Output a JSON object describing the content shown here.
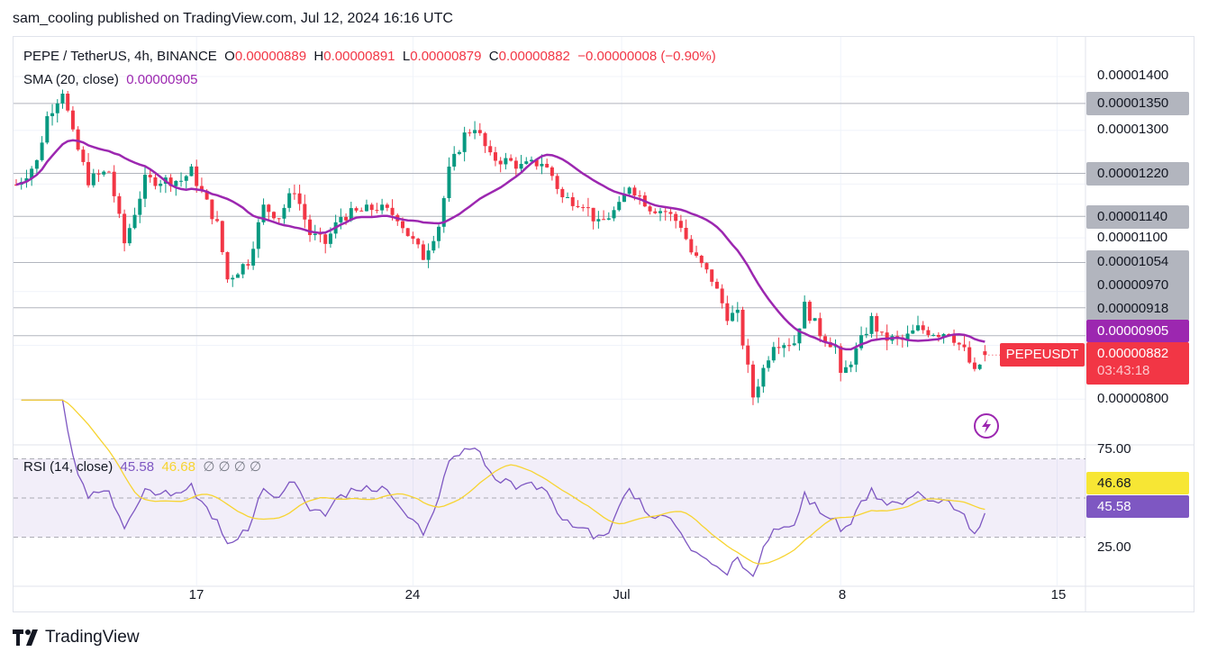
{
  "header": {
    "published": "sam_cooling published on TradingView.com, Jul 12, 2024 16:16 UTC"
  },
  "legend": {
    "symbol": "PEPE / TetherUS, 4h, BINANCE",
    "o_label": "O",
    "o": "0.00000889",
    "h_label": "H",
    "h": "0.00000891",
    "l_label": "L",
    "l": "0.00000879",
    "c_label": "C",
    "c": "0.00000882",
    "change": "−0.00000008 (−0.90%)",
    "sma_label": "SMA (20, close)",
    "sma_value": "0.00000905"
  },
  "price_axis": {
    "ticks": [
      "0.00001400",
      "0.00001300",
      "0.00001100",
      "0.00000800"
    ],
    "levels": [
      "0.00001350",
      "0.00001220",
      "0.00001140",
      "0.00001054",
      "0.00000970",
      "0.00000918"
    ],
    "sma_tag": "0.00000905",
    "last_price": "0.00000882",
    "countdown": "03:43:18",
    "symbol_tag": "PEPEUSDT"
  },
  "rsi": {
    "label": "RSI (14, close)",
    "value": "45.58",
    "ma_value": "46.68",
    "extra": "∅ ∅ ∅ ∅",
    "ticks": [
      "75.00",
      "25.00"
    ]
  },
  "time_axis": {
    "labels": [
      "17",
      "24",
      "Jul",
      "8",
      "15"
    ]
  },
  "footer": {
    "brand": "TradingView"
  },
  "colors": {
    "up": "#089981",
    "down": "#f23645",
    "sma": "#9c27b0",
    "rsi": "#7e57c2",
    "rsi_ma": "#f7d431",
    "level": "#b2b5be"
  },
  "chart_data": {
    "type": "candlestick",
    "title": "PEPE / TetherUS, 4h, BINANCE",
    "unit": "price × 1e-8",
    "ylim": [
      770,
      1425
    ],
    "price_levels": [
      1350,
      1220,
      1140,
      1054,
      970,
      918
    ],
    "time_ticks": [
      {
        "label": "17",
        "index": 35
      },
      {
        "label": "24",
        "index": 77
      },
      {
        "label": "Jul",
        "index": 117.5
      },
      {
        "label": "8",
        "index": 160
      },
      {
        "label": "15",
        "index": 202
      }
    ],
    "close_path": [
      [
        0,
        1199
      ],
      [
        4,
        1241
      ],
      [
        6,
        1325
      ],
      [
        9,
        1375
      ],
      [
        11,
        1291
      ],
      [
        14,
        1207
      ],
      [
        18,
        1224
      ],
      [
        21,
        1090
      ],
      [
        25,
        1207
      ],
      [
        28,
        1207
      ],
      [
        32,
        1207
      ],
      [
        34,
        1224
      ],
      [
        39,
        1124
      ],
      [
        41,
        1023
      ],
      [
        45,
        1057
      ],
      [
        48,
        1157
      ],
      [
        51,
        1140
      ],
      [
        54,
        1191
      ],
      [
        57,
        1107
      ],
      [
        60,
        1090
      ],
      [
        63,
        1140
      ],
      [
        67,
        1149
      ],
      [
        70,
        1157
      ],
      [
        74,
        1140
      ],
      [
        76,
        1107
      ],
      [
        79,
        1065
      ],
      [
        82,
        1124
      ],
      [
        84,
        1224
      ],
      [
        87,
        1291
      ],
      [
        89,
        1308
      ],
      [
        92,
        1249
      ],
      [
        96,
        1241
      ],
      [
        98,
        1232
      ],
      [
        102,
        1241
      ],
      [
        104,
        1216
      ],
      [
        106,
        1174
      ],
      [
        110,
        1166
      ],
      [
        113,
        1124
      ],
      [
        117,
        1157
      ],
      [
        119,
        1199
      ],
      [
        123,
        1157
      ],
      [
        126,
        1149
      ],
      [
        129,
        1124
      ],
      [
        131,
        1073
      ],
      [
        135,
        1023
      ],
      [
        138,
        956
      ],
      [
        140,
        956
      ],
      [
        143,
        805
      ],
      [
        145,
        856
      ],
      [
        147,
        906
      ],
      [
        151,
        906
      ],
      [
        153,
        973
      ],
      [
        156,
        923
      ],
      [
        159,
        897
      ],
      [
        160,
        839
      ],
      [
        163,
        889
      ],
      [
        166,
        948
      ],
      [
        168,
        914
      ],
      [
        172,
        909
      ],
      [
        175,
        931
      ],
      [
        179,
        923
      ],
      [
        181,
        926
      ],
      [
        184,
        889
      ],
      [
        186,
        847
      ],
      [
        188,
        882
      ]
    ],
    "sma_period": 20,
    "rsi_period": 14,
    "rsi_levels": [
      70,
      50,
      30
    ],
    "rsi_ylim": [
      15,
      80
    ]
  }
}
